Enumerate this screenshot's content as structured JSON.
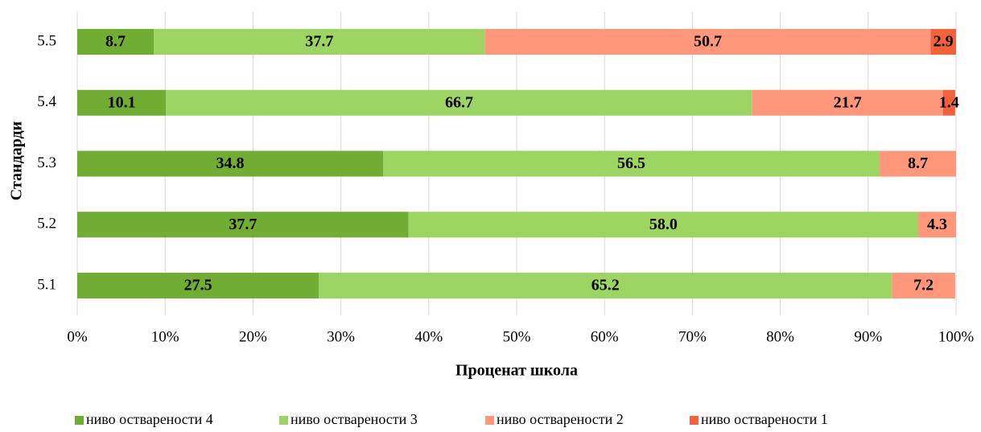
{
  "chart_data": {
    "type": "stacked-barh",
    "xlabel": "Проценат школа",
    "ylabel": "Стандарди",
    "categories": [
      "5.1",
      "5.2",
      "5.3",
      "5.4",
      "5.5"
    ],
    "series": [
      {
        "name": "ниво остварености 4",
        "color": "#70ad32",
        "values": [
          27.5,
          37.7,
          34.8,
          10.1,
          8.7
        ],
        "value_labels": [
          "27.5",
          "37.7",
          "34.8",
          "10.1",
          "8.7"
        ]
      },
      {
        "name": "ниво остварености 3",
        "color": "#9dd563",
        "values": [
          65.2,
          58.0,
          56.5,
          66.7,
          37.7
        ],
        "value_labels": [
          "65.2",
          "58.0",
          "56.5",
          "66.7",
          "37.7"
        ]
      },
      {
        "name": "ниво остварености 2",
        "color": "#ff977a",
        "values": [
          7.2,
          4.3,
          8.7,
          21.7,
          50.7
        ],
        "value_labels": [
          "7.2",
          "4.3",
          "8.7",
          "21.7",
          "50.7"
        ]
      },
      {
        "name": "ниво остварености 1",
        "color": "#f4623c",
        "values": [
          null,
          null,
          null,
          1.4,
          2.9
        ],
        "value_labels": [
          null,
          null,
          null,
          "1.4",
          "2.9"
        ]
      }
    ],
    "xlim": [
      0,
      100
    ],
    "xticks": [
      {
        "value": 0,
        "label": "0%"
      },
      {
        "value": 10,
        "label": "10%"
      },
      {
        "value": 20,
        "label": "20%"
      },
      {
        "value": 30,
        "label": "30%"
      },
      {
        "value": 40,
        "label": "40%"
      },
      {
        "value": 50,
        "label": "50%"
      },
      {
        "value": 60,
        "label": "60%"
      },
      {
        "value": 70,
        "label": "70%"
      },
      {
        "value": 80,
        "label": "80%"
      },
      {
        "value": 90,
        "label": "90%"
      },
      {
        "value": 100,
        "label": "100%"
      }
    ],
    "grid": true,
    "legend": "bottom"
  }
}
